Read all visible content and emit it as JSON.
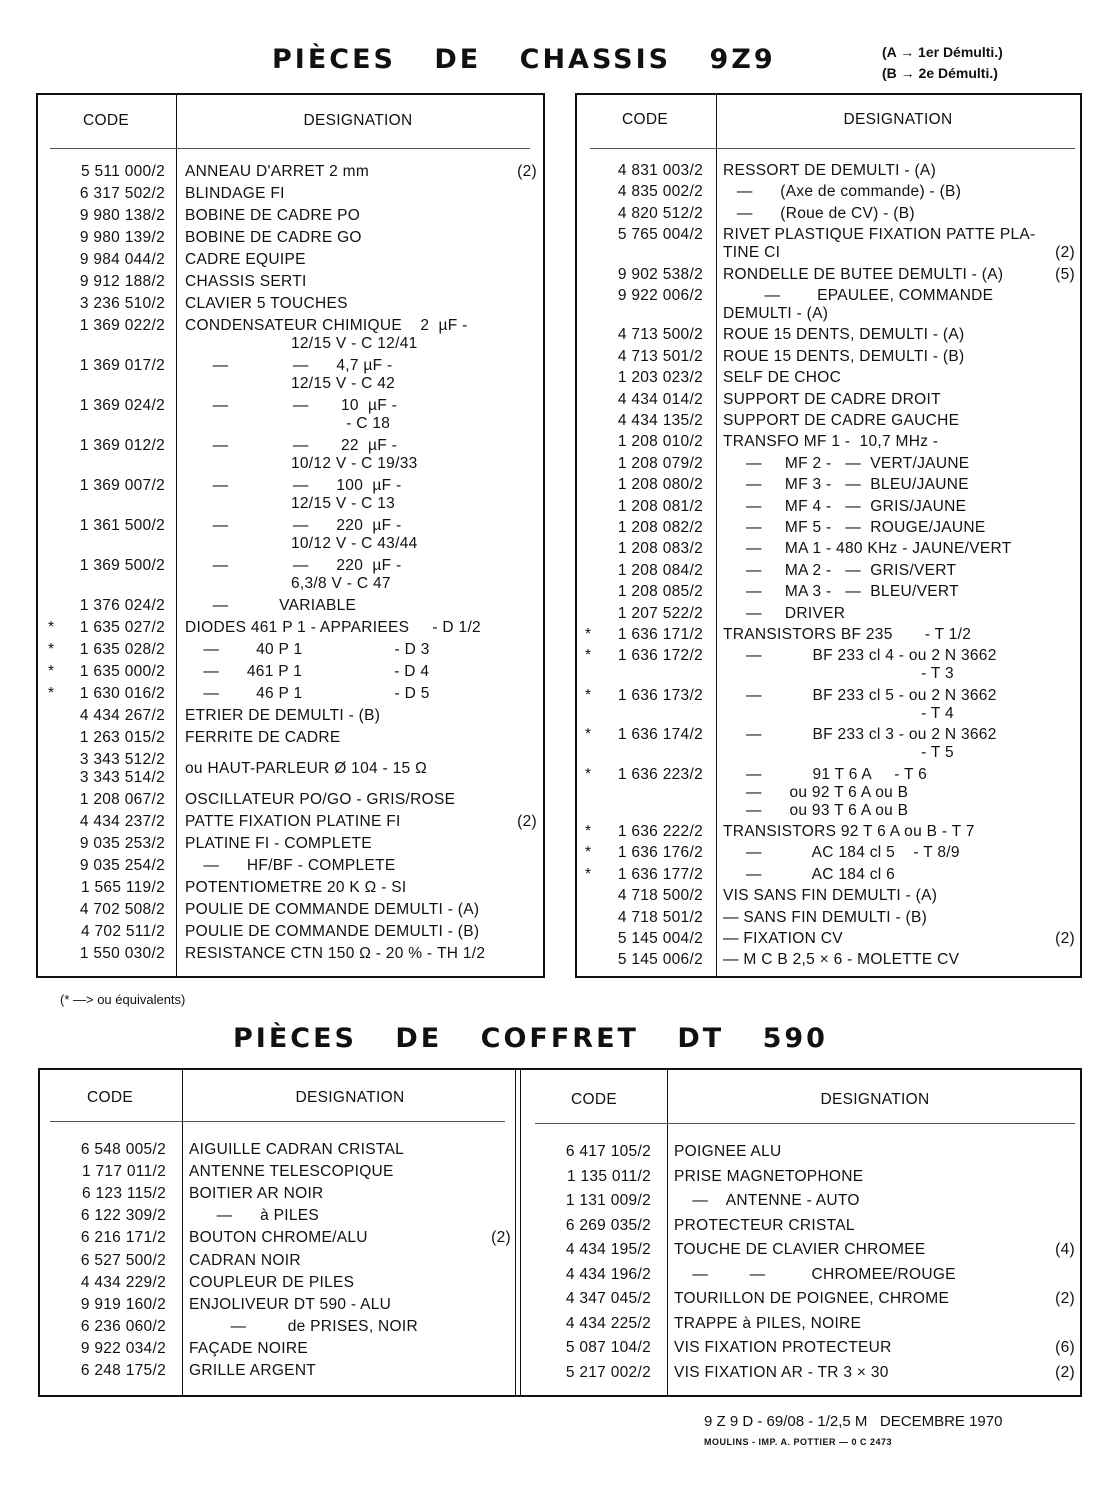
{
  "header": {
    "title": "PIÈCES DE CHASSIS 9Z9",
    "notes": [
      "(A → 1er Démulti.)",
      "(B → 2e Démulti.)"
    ]
  },
  "tables": {
    "chassis_left": {
      "columns": [
        "CODE",
        "DESIGNATION"
      ],
      "rows": [
        {
          "code": "5 511 000/2",
          "text": "ANNEAU D'ARRET 2 mm",
          "note": "(2)"
        },
        {
          "code": "6 317 502/2",
          "text": "BLINDAGE FI"
        },
        {
          "code": "9 980 138/2",
          "text": "BOBINE DE CADRE PO"
        },
        {
          "code": "9 980 139/2",
          "text": "BOBINE DE CADRE GO"
        },
        {
          "code": "9 984 044/2",
          "text": "CADRE EQUIPE"
        },
        {
          "code": "9 912 188/2",
          "text": "CHASSIS SERTI"
        },
        {
          "code": "3 236 510/2",
          "text": "CLAVIER 5 TOUCHES"
        },
        {
          "code": "1 369 022/2",
          "text": [
            "CONDENSATEUR CHIMIQUE    2  µF -",
            "                       12/15 V - C 12/41"
          ]
        },
        {
          "code": "1 369 017/2",
          "text": [
            "      —              —      4,7 µF -",
            "                       12/15 V - C 42"
          ]
        },
        {
          "code": "1 369 024/2",
          "text": [
            "      —              —       10  µF -",
            "                                   - C 18"
          ]
        },
        {
          "code": "1 369 012/2",
          "text": [
            "      —              —       22  µF -",
            "                       10/12 V - C 19/33"
          ]
        },
        {
          "code": "1 369 007/2",
          "text": [
            "      —              —      100  µF -",
            "                       12/15 V - C 13"
          ]
        },
        {
          "code": "1 361 500/2",
          "text": [
            "      —              —      220  µF -",
            "                       10/12 V - C 43/44"
          ]
        },
        {
          "code": "1 369 500/2",
          "text": [
            "      —              —      220  µF -",
            "                       6,3/8 V - C 47"
          ]
        },
        {
          "code": "1 376 024/2",
          "text": "      —           VARIABLE"
        },
        {
          "star": "*",
          "code": "1 635 027/2",
          "text": "DIODES 461 P 1 - APPARIEES     - D 1/2"
        },
        {
          "star": "*",
          "code": "1 635 028/2",
          "text": "    —        40 P 1                    - D 3"
        },
        {
          "star": "*",
          "code": "1 635 000/2",
          "text": "    —      461 P 1                    - D 4"
        },
        {
          "star": "*",
          "code": "1 630 016/2",
          "text": "    —        46 P 1                    - D 5"
        },
        {
          "code": "4 434 267/2",
          "text": "ETRIER DE DEMULTI - (B)"
        },
        {
          "code": "1 263 015/2",
          "text": "FERRITE DE CADRE"
        },
        {
          "code": [
            "3 343 512/2",
            "3 343 514/2"
          ],
          "text": "ou HAUT-PARLEUR Ø 104 - 15 Ω"
        },
        {
          "code": "1 208 067/2",
          "text": "OSCILLATEUR PO/GO - GRIS/ROSE"
        },
        {
          "code": "4 434 237/2",
          "text": "PATTE FIXATION PLATINE FI",
          "note": "(2)"
        },
        {
          "code": "9 035 253/2",
          "text": "PLATINE FI - COMPLETE"
        },
        {
          "code": "9 035 254/2",
          "text": "    —      HF/BF - COMPLETE"
        },
        {
          "code": "1 565 119/2",
          "text": "POTENTIOMETRE 20 K Ω - SI"
        },
        {
          "code": "4 702 508/2",
          "text": "POULIE DE COMMANDE DEMULTI - (A)"
        },
        {
          "code": "4 702 511/2",
          "text": "POULIE DE COMMANDE DEMULTI - (B)"
        },
        {
          "code": "1 550 030/2",
          "text": "RESISTANCE CTN 150 Ω - 20 % - TH 1/2"
        }
      ]
    },
    "chassis_right": {
      "columns": [
        "CODE",
        "DESIGNATION"
      ],
      "rows": [
        {
          "code": "4 831 003/2",
          "text": "RESSORT DE DEMULTI - (A)"
        },
        {
          "code": "4 835 002/2",
          "text": "   —      (Axe de commande) - (B)"
        },
        {
          "code": "4 820 512/2",
          "text": "   —      (Roue de CV) - (B)"
        },
        {
          "code": "5 765 004/2",
          "text": [
            "RIVET PLASTIQUE FIXATION PATTE PLA-",
            "TINE CI"
          ],
          "note": "(2)"
        },
        {
          "code": "9 902 538/2",
          "text": "RONDELLE DE BUTEE DEMULTI - (A)",
          "note": "(5)"
        },
        {
          "code": "9 922 006/2",
          "text": [
            "         —        EPAULEE, COMMANDE",
            "DEMULTI - (A)"
          ]
        },
        {
          "code": "4 713 500/2",
          "text": "ROUE 15 DENTS, DEMULTI - (A)"
        },
        {
          "code": "4 713 501/2",
          "text": "ROUE 15 DENTS, DEMULTI - (B)"
        },
        {
          "code": "1 203 023/2",
          "text": "SELF DE CHOC"
        },
        {
          "code": "4 434 014/2",
          "text": "SUPPORT DE CADRE DROIT"
        },
        {
          "code": "4 434 135/2",
          "text": "SUPPORT DE CADRE GAUCHE"
        },
        {
          "code": "1 208 010/2",
          "text": "TRANSFO MF 1 -  10,7 MHz -"
        },
        {
          "code": "1 208 079/2",
          "text": "     —     MF 2 -   —  VERT/JAUNE"
        },
        {
          "code": "1 208 080/2",
          "text": "     —     MF 3 -   —  BLEU/JAUNE"
        },
        {
          "code": "1 208 081/2",
          "text": "     —     MF 4 -   —  GRIS/JAUNE"
        },
        {
          "code": "1 208 082/2",
          "text": "     —     MF 5 -   —  ROUGE/JAUNE"
        },
        {
          "code": "1 208 083/2",
          "text": "     —     MA 1 - 480 KHz - JAUNE/VERT"
        },
        {
          "code": "1 208 084/2",
          "text": "     —     MA 2 -   —  GRIS/VERT"
        },
        {
          "code": "1 208 085/2",
          "text": "     —     MA 3 -   —  BLEU/VERT"
        },
        {
          "code": "1 207 522/2",
          "text": "     —     DRIVER"
        },
        {
          "star": "*",
          "code": "1 636 171/2",
          "text": "TRANSISTORS BF 235       - T 1/2"
        },
        {
          "star": "*",
          "code": "1 636 172/2",
          "text": [
            "     —           BF 233 cl 4 - ou 2 N 3662",
            "                                           - T 3"
          ]
        },
        {
          "star": "*",
          "code": "1 636 173/2",
          "text": [
            "     —           BF 233 cl 5 - ou 2 N 3662",
            "                                           - T 4"
          ]
        },
        {
          "star": "*",
          "code": "1 636 174/2",
          "text": [
            "     —           BF 233 cl 3 - ou 2 N 3662",
            "                                           - T 5"
          ]
        },
        {
          "star": "*",
          "code": "1 636 223/2",
          "text": [
            "     —           91 T 6 A     - T 6",
            "     —      ou 92 T 6 A ou B",
            "     —      ou 93 T 6 A ou B"
          ]
        },
        {
          "star": "*",
          "code": "1 636 222/2",
          "text": "TRANSISTORS 92 T 6 A ou B - T 7"
        },
        {
          "star": "*",
          "code": "1 636 176/2",
          "text": "     —           AC 184 cl 5    - T 8/9"
        },
        {
          "star": "*",
          "code": "1 636 177/2",
          "text": "     —           AC 184 cl 6"
        },
        {
          "code": "4 718 500/2",
          "text": "VIS SANS FIN DEMULTI - (A)"
        },
        {
          "code": "4 718 501/2",
          "text": "— SANS FIN DEMULTI - (B)"
        },
        {
          "code": "5 145 004/2",
          "text": "— FIXATION CV",
          "note": "(2)"
        },
        {
          "code": "5 145 006/2",
          "text": "— M C B 2,5 × 6 - MOLETTE CV"
        }
      ]
    },
    "coffret_left": {
      "columns": [
        "CODE",
        "DESIGNATION"
      ],
      "rows": [
        {
          "code": "6 548 005/2",
          "text": "AIGUILLE CADRAN CRISTAL"
        },
        {
          "code": "1 717 011/2",
          "text": "ANTENNE TELESCOPIQUE"
        },
        {
          "code": "6 123 115/2",
          "text": "BOITIER AR NOIR"
        },
        {
          "code": "6 122 309/2",
          "text": "      —      à PILES"
        },
        {
          "code": "6 216 171/2",
          "text": "BOUTON CHROME/ALU",
          "note": "(2)"
        },
        {
          "code": "6 527 500/2",
          "text": "CADRAN NOIR"
        },
        {
          "code": "4 434 229/2",
          "text": "COUPLEUR DE PILES"
        },
        {
          "code": "9 919 160/2",
          "text": "ENJOLIVEUR DT 590 - ALU"
        },
        {
          "code": "6 236 060/2",
          "text": "         —         de PRISES, NOIR"
        },
        {
          "code": "9 922 034/2",
          "text": "FAÇADE NOIRE"
        },
        {
          "code": "6 248 175/2",
          "text": "GRILLE ARGENT"
        }
      ]
    },
    "coffret_right": {
      "columns": [
        "CODE",
        "DESIGNATION"
      ],
      "rows": [
        {
          "code": "6 417 105/2",
          "text": "POIGNEE ALU"
        },
        {
          "code": "1 135 011/2",
          "text": "PRISE MAGNETOPHONE"
        },
        {
          "code": "1 131 009/2",
          "text": "    —    ANTENNE - AUTO"
        },
        {
          "code": "6 269 035/2",
          "text": "PROTECTEUR CRISTAL"
        },
        {
          "code": "4 434 195/2",
          "text": "TOUCHE DE CLAVIER CHROMEE",
          "note": "(4)"
        },
        {
          "code": "4 434 196/2",
          "text": "    —         —          CHROMEE/ROUGE"
        },
        {
          "code": "4 347 045/2",
          "text": "TOURILLON DE POIGNEE, CHROME",
          "note": "(2)"
        },
        {
          "code": "4 434 225/2",
          "text": "TRAPPE à PILES, NOIRE"
        },
        {
          "code": "5 087 104/2",
          "text": "VIS FIXATION PROTECTEUR",
          "note": "(6)"
        },
        {
          "code": "5 217 002/2",
          "text": "VIS FIXATION AR - TR 3 × 30",
          "note": "(2)"
        }
      ]
    }
  },
  "footnote": "(* —> ou équivalents)",
  "section2": {
    "title": "PIÈCES DE COFFRET DT 590"
  },
  "footer": {
    "line1": "9 Z 9 D - 69/08 - 1/2,5 M   DECEMBRE 1970",
    "line2": "MOULINS - IMP. A. POTTIER — 0 C 2473"
  }
}
